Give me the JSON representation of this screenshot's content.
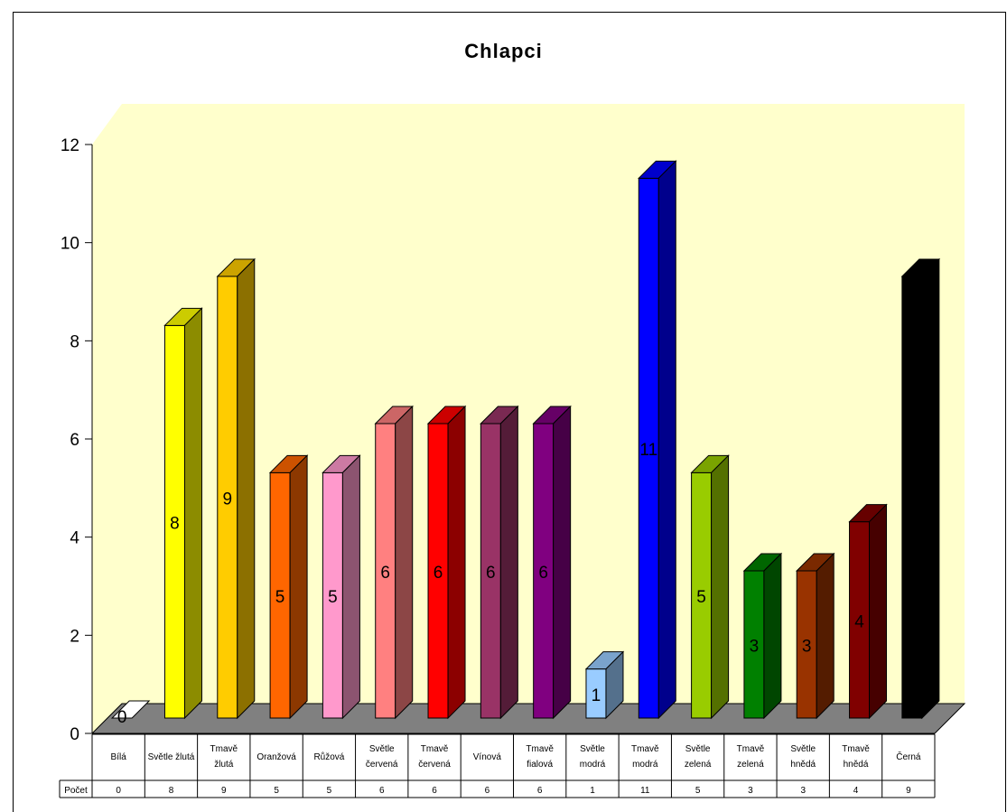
{
  "chart_data": {
    "type": "bar",
    "title": "Chlapci",
    "categories": [
      [
        "Bílá"
      ],
      [
        "Světle žlutá"
      ],
      [
        "Tmavě",
        "žlutá"
      ],
      [
        "Oranžová"
      ],
      [
        "Růžová"
      ],
      [
        "Světle",
        "červená"
      ],
      [
        "Tmavě",
        "červená"
      ],
      [
        "Vínová"
      ],
      [
        "Tmavě",
        "fialová"
      ],
      [
        "Světle",
        "modrá"
      ],
      [
        "Tmavě",
        "modrá"
      ],
      [
        "Světle",
        "zelená"
      ],
      [
        "Tmavě",
        "zelená"
      ],
      [
        "Světle",
        "hnědá"
      ],
      [
        "Tmavě",
        "hnědá"
      ],
      [
        "Černá"
      ]
    ],
    "series": [
      {
        "name": "Počet",
        "values": [
          0,
          8,
          9,
          5,
          5,
          6,
          6,
          6,
          6,
          1,
          11,
          5,
          3,
          3,
          4,
          9
        ]
      }
    ],
    "bar_labels_shown": [
      true,
      true,
      true,
      true,
      true,
      true,
      true,
      true,
      true,
      true,
      true,
      true,
      true,
      true,
      true,
      false
    ],
    "bar_colors": [
      "#ffffff",
      "#ffff00",
      "#ffcc00",
      "#ff6600",
      "#ff99cc",
      "#ff8080",
      "#ff0000",
      "#993366",
      "#800080",
      "#99ccff",
      "#0000ff",
      "#99cc00",
      "#008000",
      "#993300",
      "#800000",
      "#000000"
    ],
    "yticks": [
      0,
      2,
      4,
      6,
      8,
      10,
      12
    ],
    "ylim": [
      0,
      12
    ],
    "wall_color": "#ffffcc",
    "floor_color": "#808080",
    "grid": false,
    "legend": "data-table"
  }
}
